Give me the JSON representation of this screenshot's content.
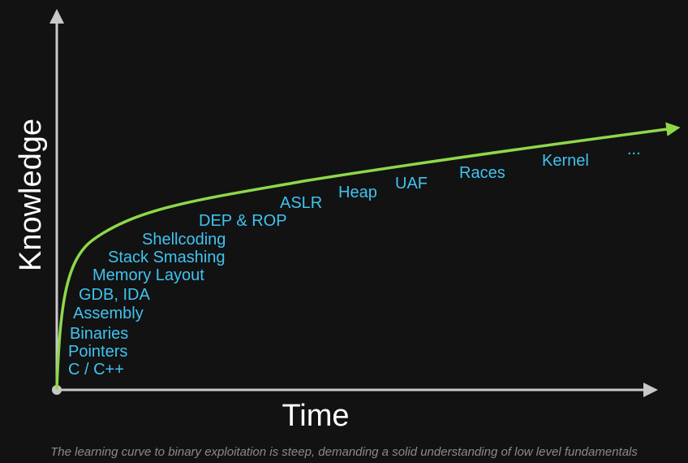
{
  "diagram": {
    "y_axis_label": "Knowledge",
    "x_axis_label": "Time",
    "topics": [
      "C / C++",
      "Pointers",
      "Binaries",
      "Assembly",
      "GDB, IDA",
      "Memory Layout",
      "Stack Smashing",
      "Shellcoding",
      "DEP & ROP",
      "ASLR",
      "Heap",
      "UAF",
      "Races",
      "Kernel",
      "..."
    ],
    "caption": "The learning curve to binary exploitation is steep, demanding a solid understanding of low level fundamentals"
  },
  "colors": {
    "background": "#121212",
    "axis": "#c8c8c8",
    "curve": "#8ed84a",
    "topic_text": "#3fc3f0",
    "axis_title": "#ffffff",
    "caption": "#8a8a8a"
  }
}
